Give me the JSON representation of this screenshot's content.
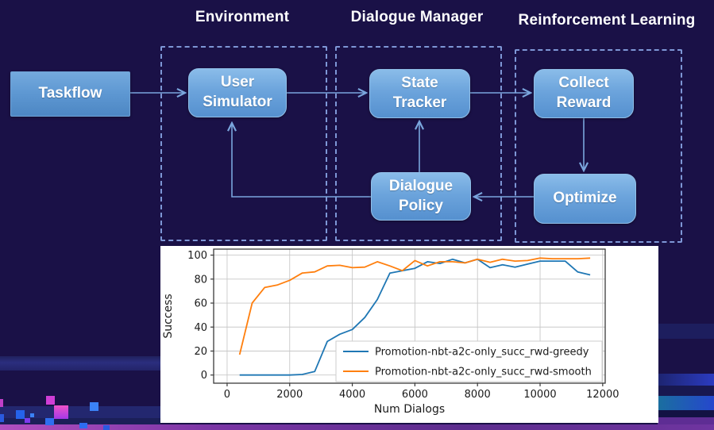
{
  "slide": {
    "sections": [
      {
        "id": "environment",
        "label": "Environment"
      },
      {
        "id": "dialogue-manager",
        "label": "Dialogue Manager"
      },
      {
        "id": "reinforcement-learning",
        "label": "Reinforcement Learning"
      }
    ],
    "nodes": [
      {
        "id": "taskflow",
        "label": "Taskflow"
      },
      {
        "id": "user-simulator",
        "label": "User Simulator"
      },
      {
        "id": "state-tracker",
        "label": "State Tracker"
      },
      {
        "id": "collect-reward",
        "label": "Collect Reward"
      },
      {
        "id": "dialogue-policy",
        "label": "Dialogue Policy"
      },
      {
        "id": "optimize",
        "label": "Optimize"
      }
    ],
    "colors": {
      "background": "#1a1147",
      "node_fill": "#6ca4dc",
      "arrow": "#7aa6dd",
      "dashed_border": "#7e97d6",
      "title_text": "#ffffff",
      "bottom_accent_purple": "#5c2d92",
      "bottom_accent_blue": "#2547cd",
      "pixel_pink": "#d946ef",
      "pixel_blue": "#3b82f6"
    }
  },
  "chart_data": {
    "type": "line",
    "title": "",
    "xlabel": "Num Dialogs",
    "ylabel": "Success",
    "xlim": [
      -430,
      12080
    ],
    "ylim": [
      -6.8,
      105
    ],
    "xticks": [
      0,
      2000,
      4000,
      6000,
      8000,
      10000,
      12000
    ],
    "yticks": [
      0,
      20,
      40,
      60,
      80,
      100
    ],
    "grid": true,
    "legend_position": "lower right",
    "x": [
      400,
      800,
      1200,
      1600,
      2000,
      2400,
      2800,
      3200,
      3600,
      4000,
      4400,
      4800,
      5200,
      5600,
      6000,
      6400,
      6800,
      7200,
      7600,
      8000,
      8400,
      8800,
      9200,
      9600,
      10000,
      10400,
      10800,
      11200,
      11600
    ],
    "series": [
      {
        "name": "Promotion-nbt-a2c-only_succ_rwd-greedy",
        "color": "#1f77b4",
        "values": [
          0,
          0,
          0,
          0,
          0,
          0.5,
          3,
          28,
          34,
          38,
          48,
          63,
          85,
          87,
          89,
          94.5,
          93,
          96.5,
          93.5,
          96.5,
          89.5,
          92,
          90,
          92.5,
          95,
          95,
          95,
          86,
          83.5
        ]
      },
      {
        "name": "Promotion-nbt-a2c-only_succ_rwd-smooth",
        "color": "#ff7f0e",
        "values": [
          17,
          60,
          73,
          75,
          79,
          85,
          86,
          91,
          91.5,
          89.5,
          90,
          94.5,
          91,
          87,
          95.5,
          91,
          94.5,
          94.5,
          93.5,
          96.5,
          94,
          96.5,
          95,
          95.5,
          97.5,
          97,
          97,
          97,
          97.5
        ]
      }
    ]
  }
}
